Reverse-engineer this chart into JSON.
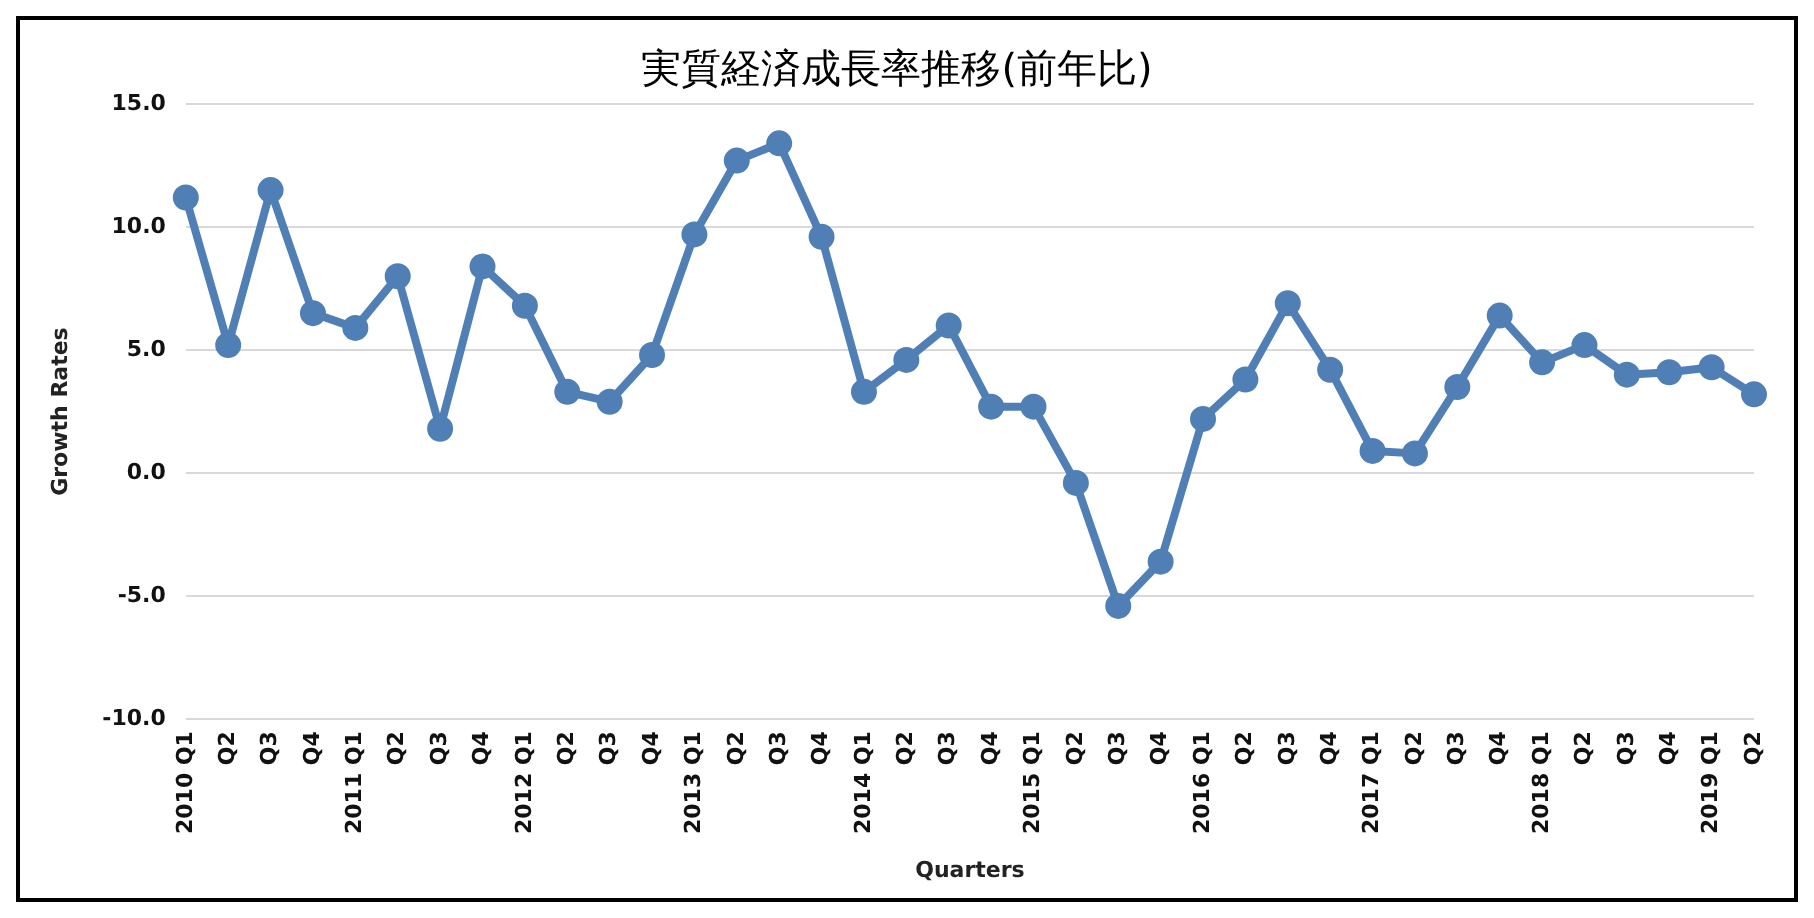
{
  "chart_data": {
    "type": "line",
    "title": "実質経済成長率推移(前年比)",
    "xlabel": "Quarters",
    "ylabel": "Growth Rates",
    "categories": [
      "2010 Q1",
      "Q2",
      "Q3",
      "Q4",
      "2011 Q1",
      "Q2",
      "Q3",
      "Q4",
      "2012 Q1",
      "Q2",
      "Q3",
      "Q4",
      "2013 Q1",
      "Q2",
      "Q3",
      "Q4",
      "2014 Q1",
      "Q2",
      "Q3",
      "Q4",
      "2015 Q1",
      "Q2",
      "Q3",
      "Q4",
      "2016 Q1",
      "Q2",
      "Q3",
      "Q4",
      "2017 Q1",
      "Q2",
      "Q3",
      "Q4",
      "2018 Q1",
      "Q2",
      "Q3",
      "Q4",
      "2019 Q1",
      "Q2"
    ],
    "series": [
      {
        "color": "#4f7fb5",
        "values": [
          11.2,
          5.2,
          11.5,
          6.5,
          5.9,
          8.0,
          1.8,
          8.4,
          6.8,
          3.3,
          2.9,
          4.8,
          9.7,
          12.7,
          13.4,
          9.6,
          3.3,
          4.6,
          6.0,
          2.7,
          2.7,
          -0.4,
          -5.4,
          -3.6,
          2.2,
          3.8,
          6.9,
          4.2,
          0.9,
          0.8,
          3.5,
          6.4,
          4.5,
          5.2,
          4.0,
          4.1,
          4.3,
          3.2
        ]
      }
    ],
    "ylim": [
      -10,
      15
    ],
    "yticks": [
      {
        "value": -10,
        "label": "-10.0"
      },
      {
        "value": -5,
        "label": "-5.0"
      },
      {
        "value": 0,
        "label": "0.0"
      },
      {
        "value": 5,
        "label": "5.0"
      },
      {
        "value": 10,
        "label": "10.0"
      },
      {
        "value": 15,
        "label": "15.0"
      }
    ],
    "grid": "y",
    "legend": false,
    "marker": "circle",
    "line_style": "solid"
  }
}
